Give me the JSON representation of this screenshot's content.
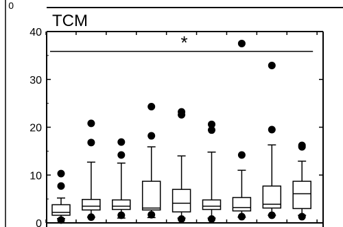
{
  "chart_data": {
    "type": "box",
    "title": "TCM",
    "previous_panel_tick": "0",
    "significance_marker": "*",
    "ylim": [
      0,
      40
    ],
    "yticks": [
      0,
      10,
      20,
      30,
      40
    ],
    "xlabel": "",
    "ylabel": "",
    "grid": false,
    "legend": "none",
    "boxes": [
      {
        "whisker_low": 0.9,
        "q1": 1.6,
        "median": 2.2,
        "q3": 3.8,
        "whisker_high": 5.2,
        "outliers": [
          10.3,
          7.7,
          0.6
        ]
      },
      {
        "whisker_low": 1.2,
        "q1": 2.7,
        "median": 3.5,
        "q3": 4.9,
        "whisker_high": 12.7,
        "outliers": [
          20.8,
          16.8,
          1.2
        ]
      },
      {
        "whisker_low": 1.0,
        "q1": 2.8,
        "median": 3.5,
        "q3": 4.8,
        "whisker_high": 12.5,
        "outliers": [
          16.9,
          14.2,
          1.6
        ]
      },
      {
        "whisker_low": 1.1,
        "q1": 2.7,
        "median": 3.1,
        "q3": 8.7,
        "whisker_high": 15.9,
        "outliers": [
          24.3,
          18.2,
          1.7
        ]
      },
      {
        "whisker_low": 1.0,
        "q1": 2.3,
        "median": 4.1,
        "q3": 7.0,
        "whisker_high": 14.0,
        "outliers": [
          23.2,
          22.6,
          0.8
        ]
      },
      {
        "whisker_low": 1.0,
        "q1": 2.8,
        "median": 3.5,
        "q3": 4.8,
        "whisker_high": 14.8,
        "outliers": [
          20.6,
          19.4,
          0.8
        ]
      },
      {
        "whisker_low": 1.2,
        "q1": 2.5,
        "median": 3.2,
        "q3": 5.3,
        "whisker_high": 11.0,
        "outliers": [
          37.5,
          14.2,
          1.3
        ]
      },
      {
        "whisker_low": 1.6,
        "q1": 3.1,
        "median": 3.9,
        "q3": 7.7,
        "whisker_high": 16.3,
        "outliers": [
          32.9,
          19.5,
          1.6
        ]
      },
      {
        "whisker_low": 1.6,
        "q1": 3.0,
        "median": 6.1,
        "q3": 8.7,
        "whisker_high": 12.9,
        "outliers": [
          16.2,
          15.9,
          1.3
        ]
      }
    ]
  }
}
